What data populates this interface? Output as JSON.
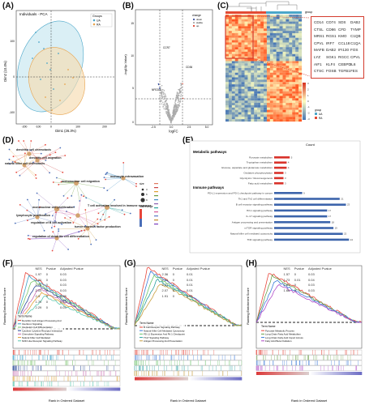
{
  "panels": {
    "A": {
      "label": "(A)",
      "title": "Individuals - PCA",
      "xlabel": "Dim1 (26.3%)",
      "ylabel": "Dim2 (10.4%)",
      "legend_title": "Groups",
      "legend_items": [
        "UA",
        "RA"
      ],
      "x_ticks": [
        "-200",
        "-100",
        "0",
        "100",
        "200"
      ],
      "y_ticks": [
        "100",
        "0",
        "-100"
      ],
      "colors": {
        "UA": "#4aa6c9",
        "RA": "#e8a34d"
      }
    },
    "B": {
      "label": "(B)",
      "ylabel": "-log10p.Value)",
      "xlabel": "logFC",
      "x_ticks": [
        "-2.5",
        "0.0",
        "2.5",
        "5.0"
      ],
      "y_ticks": [
        "0",
        "5",
        "10",
        "15"
      ],
      "legend_title": "change",
      "legend_items": [
        "down",
        "stable",
        "up"
      ],
      "annotations": [
        "CD36",
        "CCR7",
        "NFE2L2"
      ],
      "colors": {
        "down": "#3a4fa0",
        "stable": "#aaaaaa",
        "up": "#e0402c"
      }
    },
    "C": {
      "label": "(C)",
      "scale_label": "group",
      "scale_ticks": [
        "3",
        "2",
        "1",
        "0",
        "-1",
        "-2",
        "-3"
      ],
      "group_items": [
        "UA",
        "RA"
      ],
      "genes": [
        [
          "CD14",
          "CD74",
          "SDS",
          "DAB2"
        ],
        [
          "CTSL",
          "CD86",
          "CFD",
          "TYMP"
        ],
        [
          "MRS1",
          "RGS1",
          "KMO",
          "C1QB"
        ],
        [
          "CPVL",
          "IRF7",
          "CCL18",
          "C1QA"
        ],
        [
          "MAFB",
          "DAB2",
          "IFI130",
          "FOS"
        ],
        [
          "LYZ",
          "SGK1",
          "RGCC",
          "CPVL"
        ],
        [
          "AIF1",
          "KLF4",
          "CEBPD",
          "IL6"
        ],
        [
          "CTSC",
          "FOSB",
          "TGFB1",
          "FES"
        ]
      ]
    },
    "D": {
      "label": "(D)",
      "terms": [
        "dendritic cell chemotaxis",
        "dendritic cell migration",
        "natural killer cell chemotaxis",
        "mononuclear cell migration",
        "monocyte extravasation",
        "mononuclear cell proliferation",
        "T cell activation involved in immune response",
        "lymphocyte proliferation",
        "regulation of B cell activation",
        "tumor necrosis factor production",
        "regulation of dendritic cell differentiation"
      ],
      "legend_title": "size",
      "size_ticks": [
        "3",
        "6",
        "9"
      ],
      "fold_title": "fold change"
    },
    "E": {
      "label": "(E)",
      "axis_label": "Count",
      "group1": "Metabolic pathways",
      "group2": "Immune pathways"
    },
    "F": {
      "label": "(F)",
      "ylabel": "Running Enrichment Score",
      "xlabel": "Rank in Ordered Dataset",
      "table_headers": [
        "NES",
        "Pvalue",
        "Adjusted Pvalue"
      ],
      "rows": [
        [
          "1.97",
          "0",
          "0.03"
        ],
        [
          "2.01",
          "0",
          "0.03"
        ],
        [
          "1.76",
          "0",
          "0.03"
        ],
        [
          "2.03",
          "0",
          "0.03"
        ],
        [
          "2.3",
          "0",
          "0.03"
        ],
        [
          "1.70",
          "0",
          "0.03"
        ],
        [
          "2.29",
          "0",
          "0.03"
        ]
      ],
      "legend_title": "Term Name",
      "legend_items": [
        "Dendritic Cell Antigen Processing And",
        "Interferon Signaling",
        "Interleukin Cell Differentiation",
        "Cytokine Cytokine Receptor Interaction",
        "Chemokine Signaling Pathway",
        "Natural Killer Cell Mediated",
        "NOD Like Receptor Signaling Pathway"
      ]
    },
    "G": {
      "label": "(G)",
      "ylabel": "Running Enrichment Score",
      "xlabel": "Rank in Ordered Dataset",
      "table_headers": [
        "NES",
        "Pvalue",
        "Adjusted Pvalue"
      ],
      "rows": [
        [
          "2.36",
          "0",
          "0.01"
        ],
        [
          "2.31",
          "0",
          "0.01"
        ],
        [
          "2.21",
          "0",
          "0.01"
        ],
        [
          "2.07",
          "0",
          "0.01"
        ],
        [
          "1.91",
          "0",
          "0.01"
        ]
      ],
      "legend_title": "Term Name",
      "legend_items": [
        "B Cell Receptor Signaling Pathway",
        "Natural Killer Cell Mediated Cytotoxicity",
        "PD L1 Expression And Pd 1 Checkpoint",
        "Th17 Signaling Pathway",
        "Antigen Processing And Presentation"
      ]
    },
    "H": {
      "label": "(H)",
      "ylabel": "Running Enrichment Score",
      "xlabel": "Rank in Ordered Dataset",
      "table_headers": [
        "NES",
        "Pvalue",
        "Adjusted Pvalue"
      ],
      "rows": [
        [
          "1.57",
          "0",
          "0.03"
        ],
        [
          "1.73",
          "0.01",
          "0.04"
        ],
        [
          "1.51",
          "0",
          "0.03"
        ],
        [
          "1.66",
          "0",
          "0.03"
        ]
      ],
      "legend_title": "Term Name",
      "legend_items": [
        "Pyruvate Metabolic Process",
        "Long Chain Fatty Acid Metabolism",
        "Long Chain Fatty Acid Import Across",
        "Fatty Acid Beta Oxidation"
      ]
    }
  },
  "chart_data": {
    "type": "bar",
    "title": "",
    "xlabel": "Count",
    "categories": [
      "Pyruvate metabolism",
      "Tryptophan metabolism",
      "Glucose, aspartate and glutamate metabolism",
      "Oxidative phosphorylation",
      "Glycolysis / Gluconeogenesis",
      "Fatty acid metabolism",
      "PD-L1 expression and PD-1 checkpoint pathway in cancer",
      "Th1 and Th2 cell differentiation",
      "B cell receptor signaling pathway",
      "Hif-1 signaling pathway",
      "IL-17 signaling pathway",
      "Antigen processing and presentation",
      "mTOR signaling pathway",
      "Natural killer cell mediated cytotoxicity",
      "TNF signaling pathway"
    ],
    "series": [
      {
        "name": "Metabolic pathways",
        "values": [
          5,
          4,
          4,
          3,
          3,
          3,
          0,
          0,
          0,
          0,
          0,
          0,
          0,
          0,
          0
        ]
      },
      {
        "name": "Immune pathways",
        "values": [
          0,
          0,
          0,
          0,
          0,
          0,
          9,
          21,
          23,
          17,
          17,
          18,
          19,
          22,
          24
        ]
      }
    ],
    "colors": {
      "Metabolic pathways": "#d8322a",
      "Immune pathways": "#3c64ab"
    }
  }
}
